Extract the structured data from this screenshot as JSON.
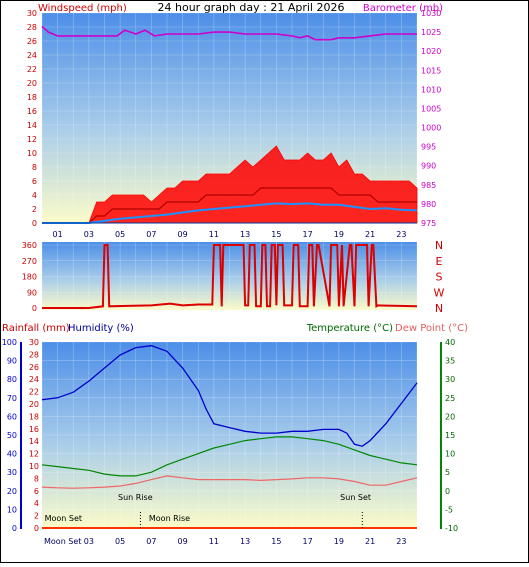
{
  "title": "24 hour graph day : 21 April 2026",
  "colors": {
    "wind": "#ff0000",
    "gust_fill": "#ff0000",
    "avg": "#1e90ff",
    "baro": "#cc00cc",
    "dir": "#dd0000",
    "rain": "#ff3300",
    "hum": "#0000cc",
    "temp": "#008800",
    "dew": "#ee6666",
    "label_red": "#cc0000",
    "label_blue": "#000099",
    "label_green": "#006600",
    "label_pink": "#e06060"
  },
  "chart_data": [
    {
      "type": "line",
      "name": "wind-barometer",
      "ylabel_left": "Windspeed (mph)",
      "ylabel_right": "Barometer (mb)",
      "x_ticks": [
        "01",
        "03",
        "05",
        "07",
        "09",
        "11",
        "13",
        "15",
        "17",
        "19",
        "21",
        "23"
      ],
      "y_left_ticks": [
        0,
        2,
        4,
        6,
        8,
        10,
        12,
        14,
        16,
        18,
        20,
        22,
        24,
        26,
        28,
        30
      ],
      "y_left_range": [
        0,
        30
      ],
      "y_right_ticks": [
        975,
        980,
        985,
        990,
        995,
        1000,
        1005,
        1010,
        1015,
        1020,
        1025,
        1030
      ],
      "y_right_range": [
        975,
        1030
      ],
      "series": [
        {
          "key": "gust",
          "x": [
            0,
            3,
            3.5,
            4,
            4.5,
            5,
            5.5,
            6,
            6.5,
            7,
            7.5,
            8,
            8.5,
            9,
            9.5,
            10,
            10.5,
            11,
            11.5,
            12,
            12.5,
            13,
            13.5,
            14,
            14.5,
            15,
            15.5,
            16,
            16.5,
            17,
            17.5,
            18,
            18.5,
            19,
            19.5,
            20,
            20.5,
            21,
            21.5,
            22,
            22.5,
            23,
            23.5,
            24
          ],
          "values": [
            0,
            0,
            3,
            3,
            4,
            4,
            4,
            4,
            4,
            3,
            4,
            5,
            5,
            6,
            6,
            6,
            7,
            7,
            7,
            7,
            8,
            9,
            8,
            9,
            10,
            11,
            9,
            9,
            9,
            10,
            9,
            9,
            10,
            8,
            9,
            7,
            7,
            6,
            6,
            6,
            6,
            6,
            6,
            5
          ]
        },
        {
          "key": "wind",
          "x": [
            0,
            3,
            3.5,
            4,
            4.5,
            5,
            5.5,
            6,
            6.5,
            7,
            7.5,
            8,
            8.5,
            9,
            9.5,
            10,
            10.5,
            11,
            11.5,
            12,
            12.5,
            13,
            13.5,
            14,
            14.5,
            15,
            15.5,
            16,
            16.5,
            17,
            17.5,
            18,
            18.5,
            19,
            19.5,
            20,
            20.5,
            21,
            21.5,
            22,
            22.5,
            23,
            23.5,
            24
          ],
          "values": [
            0,
            0,
            1,
            1,
            2,
            2,
            2,
            2,
            2,
            2,
            2,
            3,
            3,
            3,
            3,
            3,
            4,
            4,
            4,
            4,
            4,
            4,
            4,
            5,
            5,
            5,
            5,
            5,
            5,
            5,
            5,
            5,
            5,
            4,
            4,
            4,
            4,
            4,
            3,
            3,
            3,
            3,
            3,
            3
          ]
        },
        {
          "key": "avg",
          "x": [
            0,
            3,
            4,
            5,
            6,
            7,
            8,
            9,
            10,
            11,
            12,
            13,
            14,
            15,
            16,
            17,
            18,
            19,
            20,
            21,
            22,
            23,
            24
          ],
          "values": [
            0,
            0,
            0.3,
            0.6,
            0.8,
            1.0,
            1.2,
            1.5,
            1.8,
            2.0,
            2.2,
            2.4,
            2.6,
            2.8,
            2.7,
            2.8,
            2.6,
            2.6,
            2.3,
            2.0,
            2.1,
            1.9,
            1.8
          ]
        },
        {
          "key": "baro",
          "x": [
            0,
            0.4,
            1,
            3,
            4,
            4.8,
            5.3,
            6,
            6.6,
            7.2,
            8,
            10,
            11,
            12,
            13,
            14,
            15,
            16,
            16.5,
            17,
            17.5,
            18,
            18.5,
            19,
            20,
            21,
            22,
            23,
            24
          ],
          "values": [
            1026.5,
            1025,
            1024,
            1024,
            1024,
            1024,
            1025.5,
            1024.5,
            1025.5,
            1024,
            1024.5,
            1024.5,
            1025,
            1025,
            1024.5,
            1024.5,
            1024.5,
            1024,
            1023.5,
            1024,
            1023,
            1023,
            1023,
            1023.5,
            1023.5,
            1024,
            1024.5,
            1024.5,
            1024.5
          ]
        }
      ]
    },
    {
      "type": "line",
      "name": "wind-direction",
      "y_left_ticks": [
        0,
        90,
        180,
        270,
        360
      ],
      "y_left_range": [
        0,
        360
      ],
      "y_right_labels": [
        "N",
        "W",
        "S",
        "E",
        "N"
      ],
      "series": [
        {
          "key": "dir",
          "x": [
            0,
            3,
            3.9,
            4.0,
            4.1,
            4.2,
            4.3,
            7.0,
            8.2,
            9.0,
            10.0,
            10.9,
            11.0,
            11.4,
            11.5,
            11.6,
            11.8,
            11.9,
            12.9,
            13.0,
            13.2,
            13.3,
            13.6,
            13.7,
            14.0,
            14.1,
            14.3,
            14.4,
            14.6,
            14.7,
            14.9,
            15.0,
            15.1,
            15.4,
            15.5,
            16.0,
            16.1,
            16.4,
            16.5,
            17.0,
            17.1,
            17.3,
            17.4,
            17.6,
            17.7,
            18.4,
            18.5,
            18.9,
            19.0,
            19.2,
            19.3,
            19.7,
            19.8,
            20.0,
            20.1,
            20.8,
            20.9,
            21.1,
            21.2,
            21.4,
            21.5,
            24
          ],
          "values": [
            0,
            0,
            10,
            360,
            360,
            360,
            10,
            15,
            25,
            15,
            20,
            20,
            360,
            360,
            10,
            360,
            360,
            360,
            360,
            15,
            15,
            360,
            360,
            10,
            10,
            360,
            360,
            10,
            10,
            360,
            360,
            15,
            360,
            360,
            15,
            15,
            360,
            360,
            10,
            10,
            360,
            360,
            10,
            360,
            360,
            10,
            360,
            360,
            10,
            360,
            10,
            360,
            360,
            10,
            360,
            360,
            10,
            360,
            360,
            10,
            15,
            10
          ]
        }
      ]
    },
    {
      "type": "line",
      "name": "temperature-humidity-rain",
      "ylabel_left": "Rainfall (mm)",
      "ylabel_left2": "Humidity (%)",
      "ylabel_right": "Temperature (°C)",
      "ylabel_right2": "Dew Point (°C)",
      "x_ticks": [
        "Moon Set",
        "03",
        "05",
        "07",
        "09",
        "11",
        "13",
        "15",
        "17",
        "19",
        "21",
        "23"
      ],
      "humidity_ticks": [
        0,
        10,
        20,
        30,
        40,
        50,
        60,
        70,
        80,
        90,
        100
      ],
      "rain_ticks": [
        0,
        2,
        4,
        6,
        8,
        10,
        12,
        14,
        16,
        18,
        20,
        22,
        24,
        26,
        28,
        30
      ],
      "temp_ticks": [
        -10,
        -5,
        0,
        5,
        10,
        15,
        20,
        25,
        30,
        35,
        40
      ],
      "temp_range": [
        -10,
        40
      ],
      "annotations": [
        {
          "text": "Sun Rise",
          "x": 6.1
        },
        {
          "text": "Sun Set",
          "x": 20.2
        },
        {
          "text": "Moon Set",
          "x": 0.1
        },
        {
          "text": "Moon Rise",
          "x": 6.2
        }
      ],
      "series": [
        {
          "key": "hum",
          "x": [
            0,
            1,
            2,
            3,
            4,
            5,
            6,
            7,
            8,
            9,
            10,
            10.5,
            11,
            12,
            13,
            14,
            15,
            16,
            17,
            18,
            19,
            19.5,
            20,
            20.5,
            21,
            22,
            23,
            24
          ],
          "values": [
            69,
            70,
            73,
            79,
            86,
            93,
            97,
            98,
            95,
            86,
            74,
            64,
            56,
            54,
            52,
            51,
            51,
            52,
            52,
            53,
            53,
            51,
            45,
            44,
            47,
            56,
            67,
            78
          ]
        },
        {
          "key": "temp",
          "x": [
            0,
            1,
            2,
            3,
            4,
            5,
            6,
            7,
            8,
            9,
            10,
            11,
            12,
            13,
            14,
            15,
            16,
            17,
            18,
            19,
            20,
            21,
            22,
            23,
            24
          ],
          "values": [
            7,
            6.5,
            6,
            5.5,
            4.5,
            4,
            4,
            5,
            7,
            8.5,
            10,
            11.5,
            12.5,
            13.5,
            14,
            14.5,
            14.5,
            14,
            13.5,
            12.5,
            11,
            9.5,
            8.5,
            7.5,
            7
          ]
        },
        {
          "key": "dew",
          "x": [
            0,
            1,
            2,
            3,
            4,
            5,
            6,
            7,
            8,
            9,
            10,
            11,
            12,
            13,
            14,
            15,
            16,
            17,
            18,
            19,
            20,
            21,
            22,
            23,
            24
          ],
          "values": [
            1,
            0.8,
            0.7,
            0.8,
            1.0,
            1.3,
            2,
            3,
            4,
            3.5,
            3,
            3,
            3,
            3,
            2.8,
            3,
            3.2,
            3.5,
            3.5,
            3.2,
            2.5,
            1.5,
            1.5,
            2.5,
            3.5
          ]
        },
        {
          "key": "rain",
          "x": [
            0,
            24
          ],
          "values": [
            0,
            0
          ]
        }
      ]
    }
  ]
}
